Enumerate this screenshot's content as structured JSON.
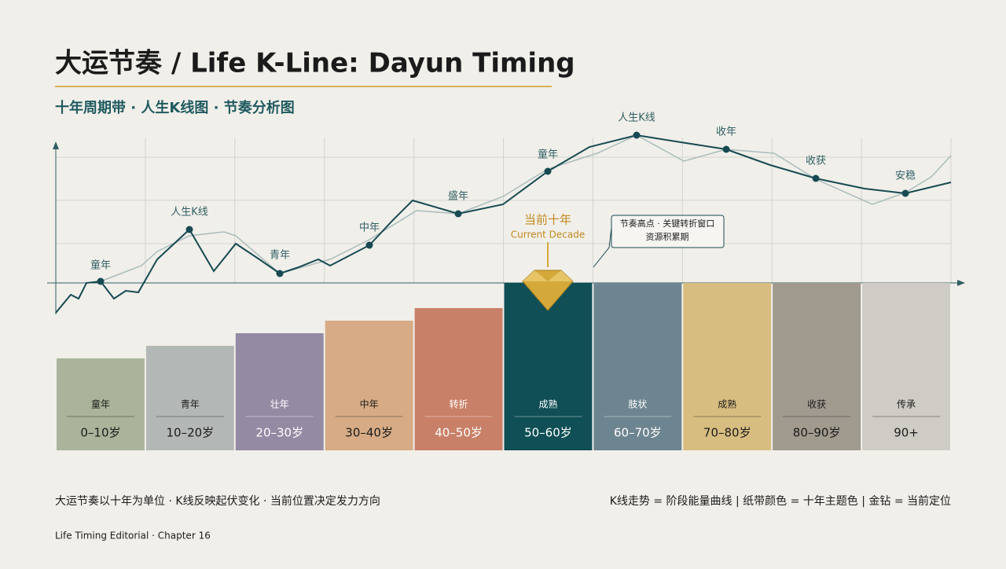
{
  "header": {
    "title": "大运节奏 / Life K-Line: Dayun Timing",
    "subtitle": "十年周期带 · 人生K线图 · 节奏分析图"
  },
  "curve_labels": [
    "童年",
    "人生K线",
    "青年",
    "中年",
    "盛年",
    "童年",
    "人生K线",
    "收年",
    "收获",
    "安稳"
  ],
  "current": {
    "label": "当前十年",
    "label_en": "Current Decade"
  },
  "callout": {
    "line1": "节奏高点 · 关键转折窗口",
    "line2": "资源积累期"
  },
  "bands": [
    {
      "label": "童年",
      "range": "0–10岁"
    },
    {
      "label": "青年",
      "range": "10–20岁"
    },
    {
      "label": "壮年",
      "range": "20–30岁"
    },
    {
      "label": "中年",
      "range": "30–40岁"
    },
    {
      "label": "转折",
      "range": "40–50岁"
    },
    {
      "label": "成熟",
      "range": "50–60岁"
    },
    {
      "label": "肢状",
      "range": "60–70岁"
    },
    {
      "label": "成熟",
      "range": "70–80岁"
    },
    {
      "label": "收获",
      "range": "80–90岁"
    },
    {
      "label": "传承",
      "range": "90+"
    }
  ],
  "footer": {
    "left": "大运节奏以十年为单位 · K线反映起伏变化 · 当前位置决定发力方向",
    "right": "K线走势 = 阶段能量曲线 | 纸带颜色 = 十年主题色 | 金钻 = 当前定位",
    "credit": "Life Timing Editorial · Chapter 16"
  }
}
